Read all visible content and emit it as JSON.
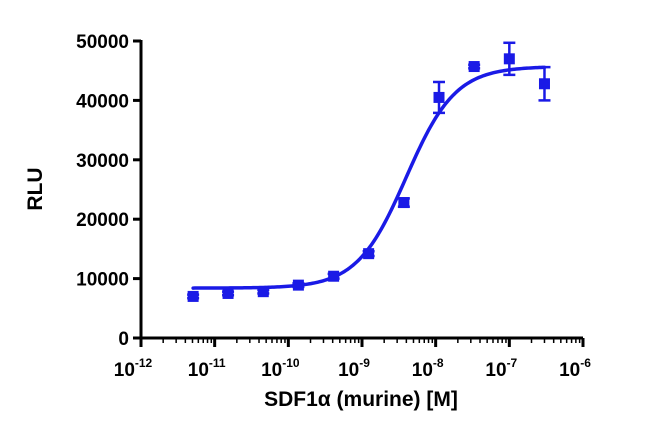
{
  "chart_data": {
    "type": "scatter",
    "title": "",
    "xlabel": "SDF1α (murine) [M]",
    "ylabel": "RLU",
    "xscale": "log10",
    "xlim": [
      1e-12,
      1e-06
    ],
    "ylim": [
      0,
      50000
    ],
    "x_ticks": [
      {
        "base": "10",
        "exp": "-12"
      },
      {
        "base": "10",
        "exp": "-11"
      },
      {
        "base": "10",
        "exp": "-10"
      },
      {
        "base": "10",
        "exp": "-9"
      },
      {
        "base": "10",
        "exp": "-8"
      },
      {
        "base": "10",
        "exp": "-7"
      },
      {
        "base": "10",
        "exp": "-6"
      }
    ],
    "y_ticks": [
      "0",
      "10000",
      "20000",
      "30000",
      "40000",
      "50000"
    ],
    "y_tick_values": [
      0,
      10000,
      20000,
      30000,
      40000,
      50000
    ],
    "x_tick_exponents": [
      -12,
      -11,
      -10,
      -9,
      -8,
      -7,
      -6
    ],
    "grid": false,
    "color": "#1a1ae6",
    "series": [
      {
        "name": "SDF1α (murine)",
        "points": [
          {
            "x": 5.1e-12,
            "y": 7000,
            "err": 300
          },
          {
            "x": 1.52e-11,
            "y": 7500,
            "err": 300
          },
          {
            "x": 4.57e-11,
            "y": 7800,
            "err": 300
          },
          {
            "x": 1.37e-10,
            "y": 8900,
            "err": 300
          },
          {
            "x": 4.12e-10,
            "y": 10400,
            "err": 400
          },
          {
            "x": 1.23e-09,
            "y": 14200,
            "err": 400
          },
          {
            "x": 3.7e-09,
            "y": 22800,
            "err": 700
          },
          {
            "x": 1.11e-08,
            "y": 40500,
            "err": 2600
          },
          {
            "x": 3.33e-08,
            "y": 45700,
            "err": 300
          },
          {
            "x": 1e-07,
            "y": 47000,
            "err": 2700
          },
          {
            "x": 3e-07,
            "y": 42800,
            "err": 2800
          }
        ],
        "fit": {
          "model": "four-parameter logistic",
          "bottom": 8400,
          "top": 45700,
          "logEC50": -8.4,
          "hill": 1.3
        }
      }
    ]
  }
}
